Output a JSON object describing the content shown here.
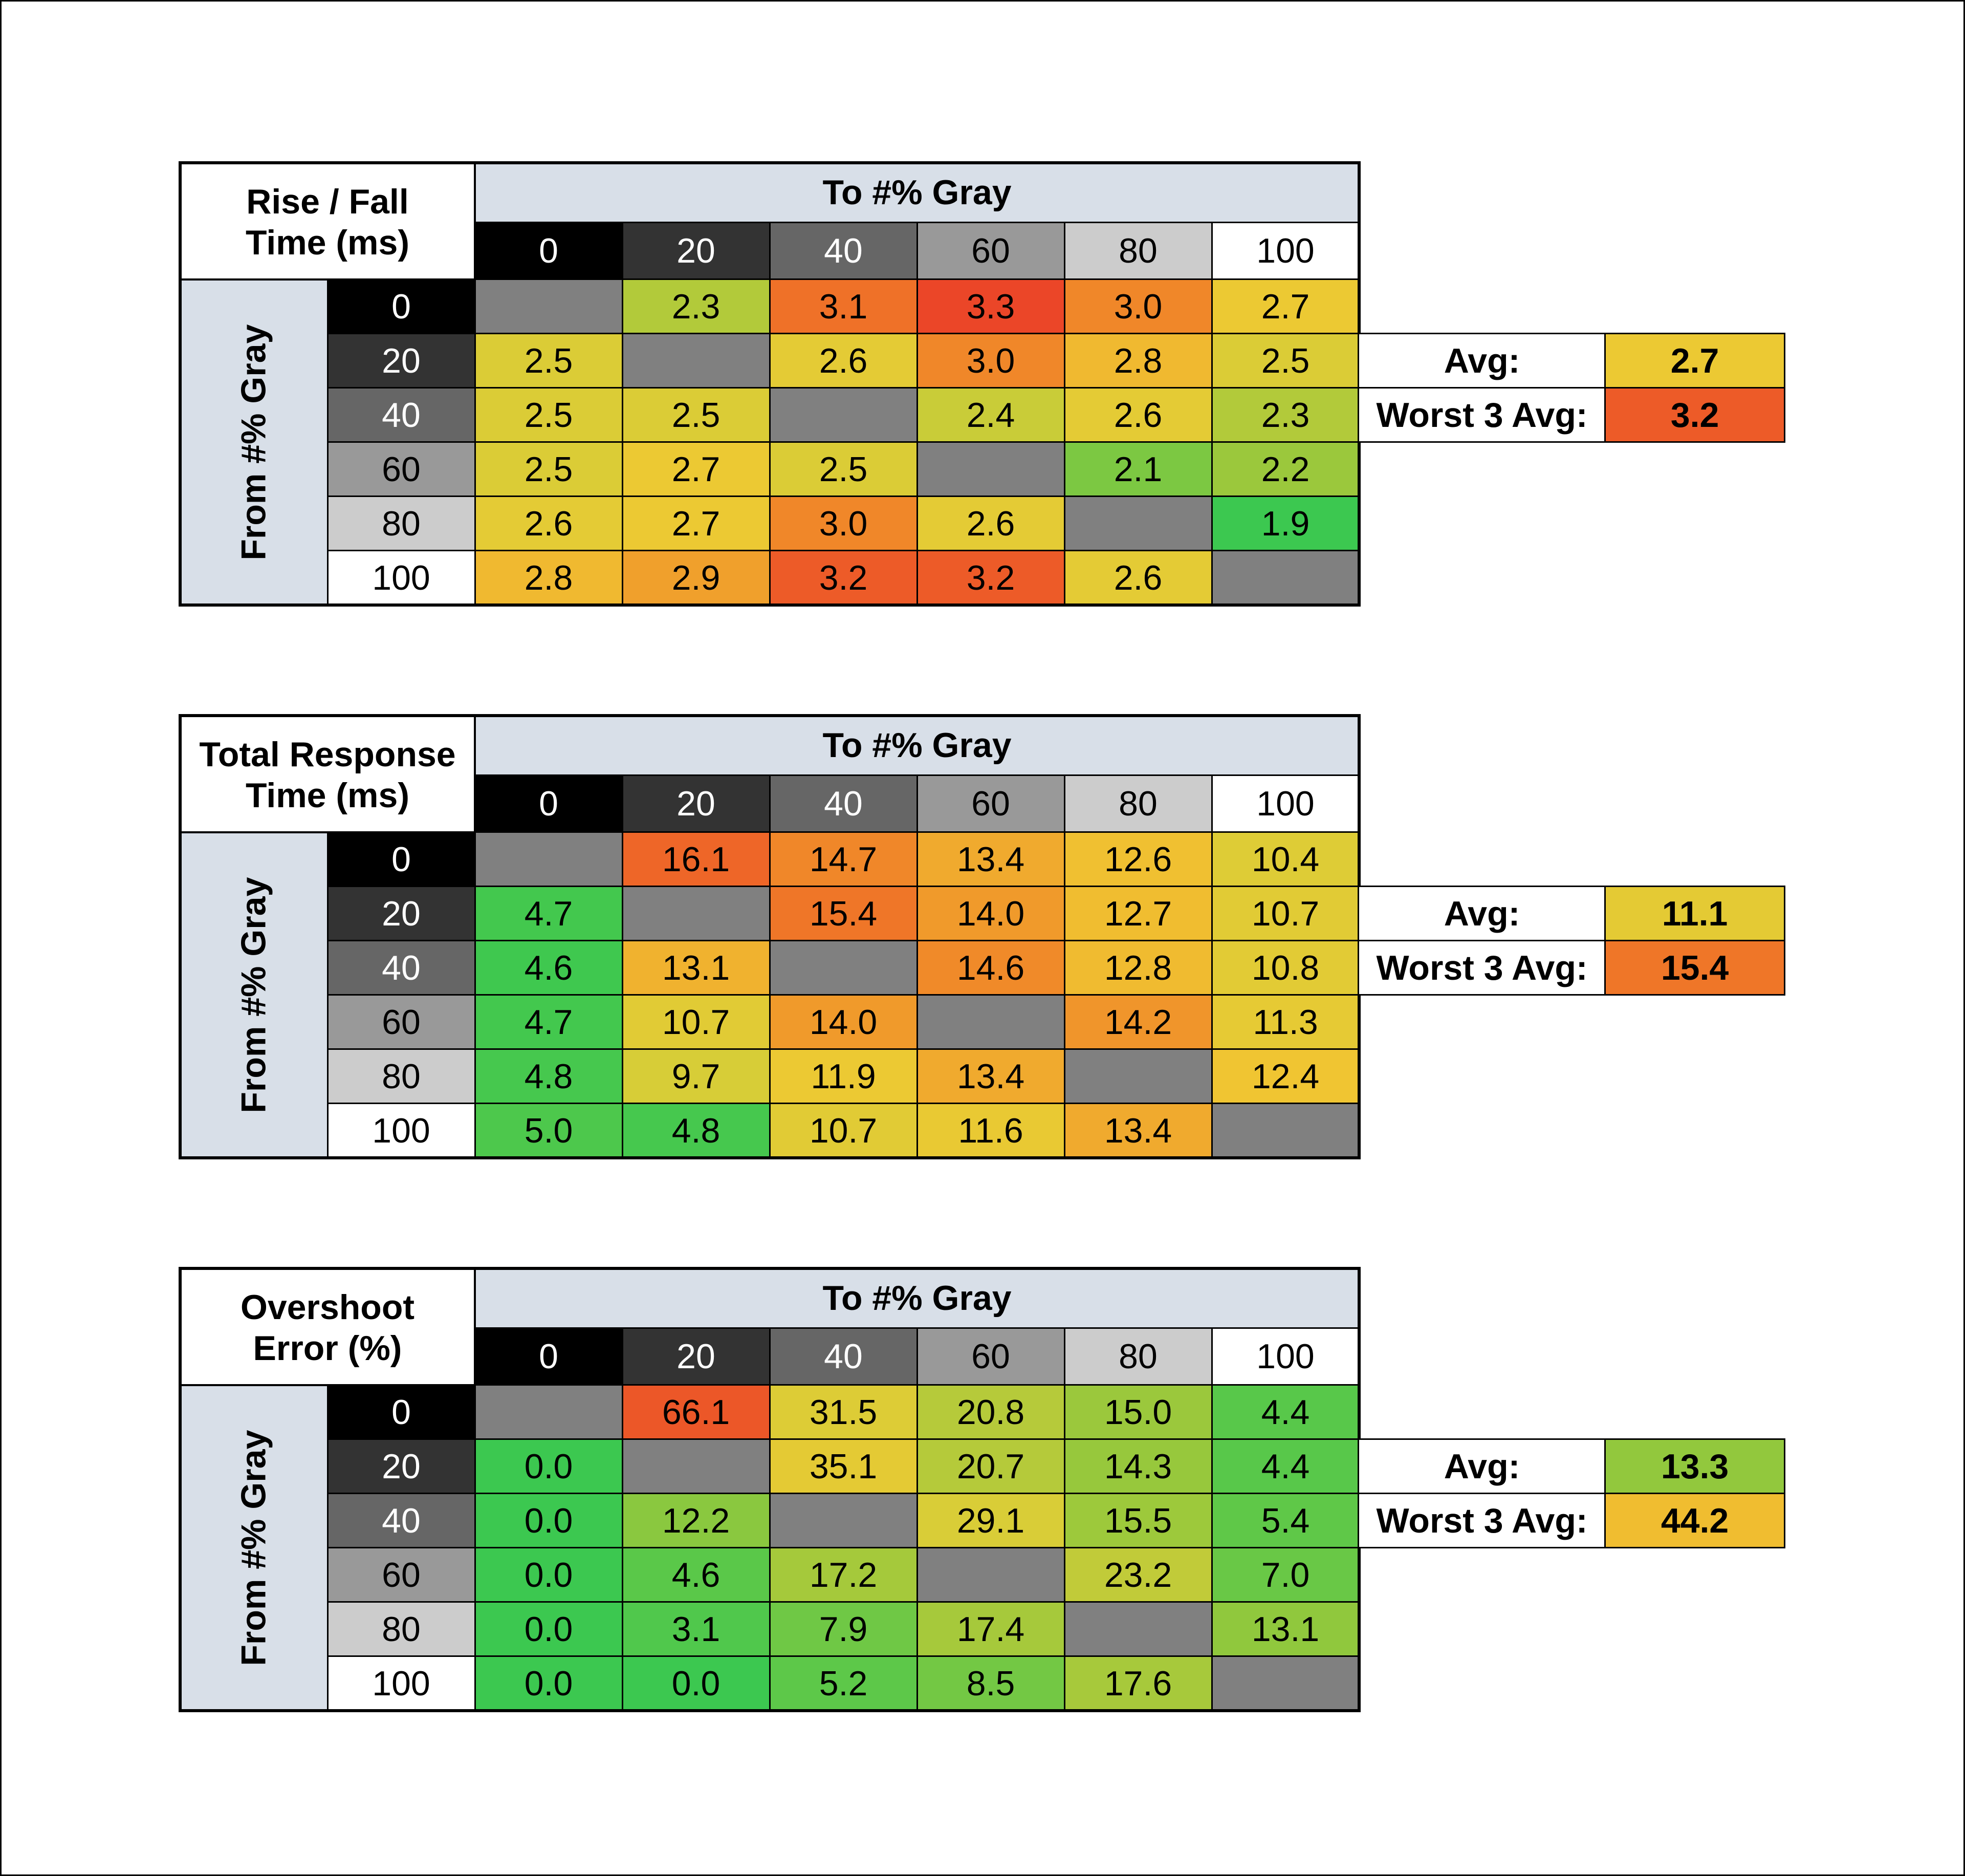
{
  "tables": [
    {
      "title": "Rise / Fall\nTime (ms)",
      "column_header": "To #% Gray",
      "row_header": "From #% Gray",
      "levels": [
        "0",
        "20",
        "40",
        "60",
        "80",
        "100"
      ],
      "matrix": [
        [
          null,
          2.3,
          3.1,
          3.3,
          3.0,
          2.7
        ],
        [
          2.5,
          null,
          2.6,
          3.0,
          2.8,
          2.5
        ],
        [
          2.5,
          2.5,
          null,
          2.4,
          2.6,
          2.3
        ],
        [
          2.5,
          2.7,
          2.5,
          null,
          2.1,
          2.2
        ],
        [
          2.6,
          2.7,
          3.0,
          2.6,
          null,
          1.9
        ],
        [
          2.8,
          2.9,
          3.2,
          3.2,
          2.6,
          null
        ]
      ],
      "avg_label": "Avg:",
      "avg_value": 2.7,
      "worst_label": "Worst 3 Avg:",
      "worst_value": 3.2
    },
    {
      "title": "Total Response\nTime (ms)",
      "column_header": "To #% Gray",
      "row_header": "From #% Gray",
      "levels": [
        "0",
        "20",
        "40",
        "60",
        "80",
        "100"
      ],
      "matrix": [
        [
          null,
          16.1,
          14.7,
          13.4,
          12.6,
          10.4
        ],
        [
          4.7,
          null,
          15.4,
          14.0,
          12.7,
          10.7
        ],
        [
          4.6,
          13.1,
          null,
          14.6,
          12.8,
          10.8
        ],
        [
          4.7,
          10.7,
          14.0,
          null,
          14.2,
          11.3
        ],
        [
          4.8,
          9.7,
          11.9,
          13.4,
          null,
          12.4
        ],
        [
          5.0,
          4.8,
          10.7,
          11.6,
          13.4,
          null
        ]
      ],
      "avg_label": "Avg:",
      "avg_value": 11.1,
      "worst_label": "Worst 3 Avg:",
      "worst_value": 15.4
    },
    {
      "title": "Overshoot\nError (%)",
      "column_header": "To #% Gray",
      "row_header": "From #% Gray",
      "levels": [
        "0",
        "20",
        "40",
        "60",
        "80",
        "100"
      ],
      "matrix": [
        [
          null,
          66.1,
          31.5,
          20.8,
          15.0,
          4.4
        ],
        [
          0.0,
          null,
          35.1,
          20.7,
          14.3,
          4.4
        ],
        [
          0.0,
          12.2,
          null,
          29.1,
          15.5,
          5.4
        ],
        [
          0.0,
          4.6,
          17.2,
          null,
          23.2,
          7.0
        ],
        [
          0.0,
          3.1,
          7.9,
          17.4,
          null,
          13.1
        ],
        [
          0.0,
          0.0,
          5.2,
          8.5,
          17.6,
          null
        ]
      ],
      "avg_label": "Avg:",
      "avg_value": 13.3,
      "worst_label": "Worst 3 Avg:",
      "worst_value": 44.2
    }
  ],
  "chart_data": [
    {
      "type": "heatmap",
      "title": "Rise / Fall Time (ms)",
      "xlabel": "To #% Gray",
      "ylabel": "From #% Gray",
      "x": [
        "0",
        "20",
        "40",
        "60",
        "80",
        "100"
      ],
      "y": [
        "0",
        "20",
        "40",
        "60",
        "80",
        "100"
      ],
      "values": [
        [
          null,
          2.3,
          3.1,
          3.3,
          3.0,
          2.7
        ],
        [
          2.5,
          null,
          2.6,
          3.0,
          2.8,
          2.5
        ],
        [
          2.5,
          2.5,
          null,
          2.4,
          2.6,
          2.3
        ],
        [
          2.5,
          2.7,
          2.5,
          null,
          2.1,
          2.2
        ],
        [
          2.6,
          2.7,
          3.0,
          2.6,
          null,
          1.9
        ],
        [
          2.8,
          2.9,
          3.2,
          3.2,
          2.6,
          null
        ]
      ],
      "annotations": {
        "Avg:": 2.7,
        "Worst 3 Avg:": 3.2
      }
    },
    {
      "type": "heatmap",
      "title": "Total Response Time (ms)",
      "xlabel": "To #% Gray",
      "ylabel": "From #% Gray",
      "x": [
        "0",
        "20",
        "40",
        "60",
        "80",
        "100"
      ],
      "y": [
        "0",
        "20",
        "40",
        "60",
        "80",
        "100"
      ],
      "values": [
        [
          null,
          16.1,
          14.7,
          13.4,
          12.6,
          10.4
        ],
        [
          4.7,
          null,
          15.4,
          14.0,
          12.7,
          10.7
        ],
        [
          4.6,
          13.1,
          null,
          14.6,
          12.8,
          10.8
        ],
        [
          4.7,
          10.7,
          14.0,
          null,
          14.2,
          11.3
        ],
        [
          4.8,
          9.7,
          11.9,
          13.4,
          null,
          12.4
        ],
        [
          5.0,
          4.8,
          10.7,
          11.6,
          13.4,
          null
        ]
      ],
      "annotations": {
        "Avg:": 11.1,
        "Worst 3 Avg:": 15.4
      }
    },
    {
      "type": "heatmap",
      "title": "Overshoot Error (%)",
      "xlabel": "To #% Gray",
      "ylabel": "From #% Gray",
      "x": [
        "0",
        "20",
        "40",
        "60",
        "80",
        "100"
      ],
      "y": [
        "0",
        "20",
        "40",
        "60",
        "80",
        "100"
      ],
      "values": [
        [
          null,
          66.1,
          31.5,
          20.8,
          15.0,
          4.4
        ],
        [
          0.0,
          null,
          35.1,
          20.7,
          14.3,
          4.4
        ],
        [
          0.0,
          12.2,
          null,
          29.1,
          15.5,
          5.4
        ],
        [
          0.0,
          4.6,
          17.2,
          null,
          23.2,
          7.0
        ],
        [
          0.0,
          3.1,
          7.9,
          17.4,
          null,
          13.1
        ],
        [
          0.0,
          0.0,
          5.2,
          8.5,
          17.6,
          null
        ]
      ],
      "annotations": {
        "Avg:": 13.3,
        "Worst 3 Avg:": 44.2
      }
    }
  ],
  "colors": {
    "header_bg": "#d8dfe8",
    "empty_cell": "#808080",
    "level_bg": [
      "#000000",
      "#333333",
      "#666666",
      "#999999",
      "#cccccc",
      "#ffffff"
    ],
    "level_fg": [
      "#ffffff",
      "#ffffff",
      "#ffffff",
      "#000000",
      "#000000",
      "#000000"
    ]
  }
}
